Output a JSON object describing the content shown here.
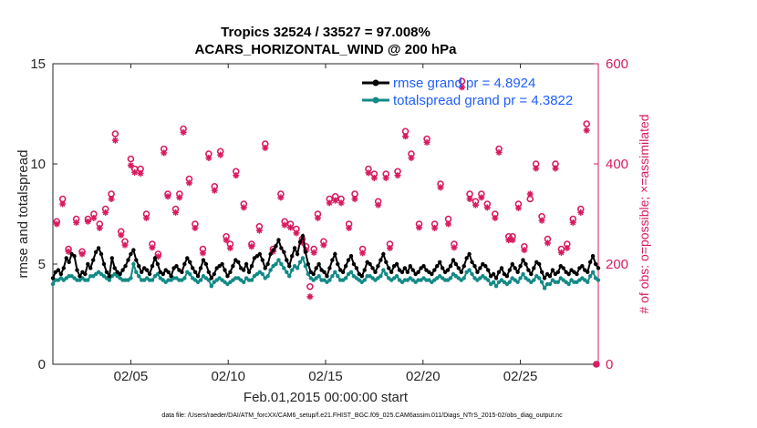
{
  "chart_data": {
    "type": "line",
    "title": [
      "Tropics 32524 / 33527 = 97.008%",
      "ACARS_HORIZONTAL_WIND @ 200 hPa"
    ],
    "xlabel": "Feb.01,2015 00:00:00 start",
    "ylabel": "rmse and totalspread",
    "y2label": "# of obs: o=possible; ×=assimilated",
    "footer": "data file: /Users/raeder/DAI/ATM_forcXX/CAM6_setup/f.e21.FHIST_BGC.f09_025.CAM6assim.011/Diags_NTrS_2015-02/obs_diag_output.nc",
    "xlim": [
      1,
      29
    ],
    "ylim": [
      0,
      15
    ],
    "y2lim": [
      0,
      600
    ],
    "x_ticks": [
      5,
      10,
      15,
      20,
      25
    ],
    "x_tick_labels": [
      "02/05",
      "02/10",
      "02/15",
      "02/20",
      "02/25"
    ],
    "y_ticks": [
      0,
      5,
      10,
      15
    ],
    "y_tick_labels": [
      "0",
      "5",
      "10",
      "15"
    ],
    "y2_ticks": [
      0,
      200,
      400,
      600
    ],
    "y2_tick_labels": [
      "0",
      "200",
      "400",
      "600"
    ],
    "series": [
      {
        "name": "rmse grand pr = 4.8924",
        "color": "#000000",
        "axis": "left",
        "values": [
          4.3,
          4.6,
          4.7,
          4.5,
          4.8,
          5.3,
          5.1,
          5.5,
          5.4,
          4.7,
          4.4,
          4.6,
          4.5,
          5.0,
          4.8,
          5.2,
          5.6,
          5.8,
          5.5,
          5.0,
          4.6,
          4.4,
          5.3,
          4.8,
          4.6,
          4.5,
          4.7,
          4.9,
          5.2,
          5.5,
          5.7,
          5.2,
          4.9,
          4.6,
          4.8,
          4.7,
          4.5,
          4.9,
          5.3,
          5.0,
          4.6,
          4.5,
          4.7,
          4.6,
          4.4,
          4.8,
          4.9,
          4.7,
          4.6,
          5.0,
          5.3,
          5.1,
          4.8,
          4.6,
          4.4,
          4.8,
          5.2,
          5.0,
          4.6,
          4.3,
          4.5,
          4.8,
          4.9,
          5.0,
          4.7,
          4.4,
          4.6,
          4.9,
          5.2,
          5.1,
          4.8,
          4.7,
          5.0,
          4.6,
          4.9,
          5.3,
          5.4,
          5.5,
          5.2,
          4.8,
          5.0,
          5.5,
          5.7,
          5.9,
          6.2,
          5.8,
          5.6,
          5.2,
          4.9,
          5.4,
          5.8,
          5.5,
          6.1,
          6.4,
          5.6,
          5.0,
          4.6,
          4.5,
          4.8,
          5.0,
          4.7,
          4.6,
          4.4,
          4.8,
          5.2,
          5.5,
          5.0,
          4.7,
          4.6,
          4.9,
          5.2,
          5.4,
          5.0,
          4.8,
          4.5,
          4.4,
          4.7,
          5.1,
          5.0,
          4.8,
          4.6,
          4.9,
          5.2,
          5.5,
          5.1,
          4.8,
          4.6,
          4.9,
          5.0,
          4.7,
          4.6,
          4.8,
          4.6,
          4.9,
          4.7,
          4.5,
          4.6,
          4.8,
          4.9,
          4.7,
          4.6,
          4.5,
          4.7,
          4.9,
          5.1,
          4.8,
          4.6,
          4.7,
          4.9,
          5.2,
          5.0,
          4.8,
          4.6,
          4.9,
          5.3,
          5.5,
          5.1,
          4.9,
          4.6,
          4.8,
          5.0,
          4.9,
          4.7,
          4.4,
          4.5,
          4.3,
          4.6,
          4.8,
          4.5,
          4.4,
          4.7,
          5.0,
          4.8,
          4.6,
          4.9,
          5.2,
          5.0,
          4.7,
          4.5,
          4.8,
          5.1,
          5.0,
          4.6,
          4.3,
          4.5,
          4.4,
          4.7,
          4.5,
          4.6,
          4.9,
          4.8,
          4.6,
          4.5,
          4.7,
          4.6,
          4.5,
          4.8,
          4.9,
          4.7,
          4.6,
          5.1,
          5.4,
          5.0,
          4.8
        ]
      },
      {
        "name": "totalspread grand pr = 4.3822",
        "color": "#138a86",
        "axis": "left",
        "values": [
          4.0,
          4.2,
          4.2,
          4.3,
          4.2,
          4.3,
          4.4,
          4.4,
          4.3,
          4.2,
          4.2,
          4.3,
          4.2,
          4.2,
          4.4,
          4.4,
          4.5,
          4.6,
          4.5,
          4.4,
          4.3,
          4.2,
          4.4,
          4.5,
          4.4,
          4.3,
          4.2,
          4.2,
          4.2,
          4.3,
          5.0,
          4.6,
          4.4,
          4.2,
          4.2,
          4.3,
          4.2,
          4.2,
          4.4,
          4.5,
          4.3,
          4.2,
          4.1,
          4.2,
          4.2,
          4.3,
          4.3,
          4.2,
          4.2,
          4.3,
          4.6,
          4.5,
          4.3,
          4.2,
          4.1,
          4.2,
          4.4,
          4.3,
          4.2,
          3.9,
          4.1,
          4.2,
          4.3,
          4.2,
          4.1,
          4.0,
          4.1,
          4.2,
          4.3,
          4.3,
          4.2,
          4.1,
          4.3,
          4.2,
          4.2,
          4.4,
          4.5,
          4.6,
          4.5,
          4.3,
          4.4,
          4.7,
          4.9,
          5.0,
          5.2,
          5.0,
          4.8,
          4.6,
          4.4,
          4.7,
          4.9,
          4.8,
          5.1,
          5.3,
          4.9,
          4.5,
          4.3,
          4.2,
          4.3,
          4.4,
          4.2,
          4.2,
          4.1,
          4.2,
          4.4,
          4.6,
          4.4,
          4.2,
          4.2,
          4.3,
          4.5,
          4.6,
          4.4,
          4.3,
          4.2,
          4.1,
          4.2,
          4.4,
          4.4,
          4.3,
          4.2,
          4.3,
          4.4,
          4.7,
          4.5,
          4.3,
          4.2,
          4.3,
          4.4,
          4.2,
          4.1,
          4.2,
          4.2,
          4.3,
          4.2,
          4.1,
          4.2,
          4.2,
          4.3,
          4.2,
          4.2,
          4.1,
          4.2,
          4.3,
          4.4,
          4.3,
          4.2,
          4.2,
          4.3,
          4.5,
          4.4,
          4.3,
          4.2,
          4.3,
          4.6,
          4.7,
          4.5,
          4.3,
          4.2,
          4.3,
          4.4,
          4.3,
          4.2,
          4.0,
          4.1,
          3.9,
          4.1,
          4.2,
          4.1,
          4.0,
          4.1,
          4.3,
          4.2,
          4.1,
          4.3,
          4.5,
          4.3,
          4.2,
          4.1,
          4.2,
          4.4,
          4.3,
          4.1,
          3.8,
          4.0,
          4.0,
          4.2,
          4.1,
          4.1,
          4.3,
          4.2,
          4.1,
          4.0,
          4.2,
          4.1,
          4.1,
          4.2,
          4.3,
          4.2,
          4.1,
          4.4,
          4.6,
          4.3,
          4.2
        ]
      }
    ],
    "obs": {
      "color": "#d81b60",
      "axis": "right",
      "points": [
        [
          1.2,
          285,
          280
        ],
        [
          1.5,
          330,
          320
        ],
        [
          1.8,
          230,
          225
        ],
        [
          2.2,
          290,
          283
        ],
        [
          2.5,
          225,
          220
        ],
        [
          2.8,
          290,
          285
        ],
        [
          3.1,
          300,
          292
        ],
        [
          3.4,
          280,
          272
        ],
        [
          3.7,
          310,
          303
        ],
        [
          4.0,
          340,
          330
        ],
        [
          4.2,
          460,
          447
        ],
        [
          4.5,
          265,
          258
        ],
        [
          4.7,
          245,
          238
        ],
        [
          5.0,
          410,
          397
        ],
        [
          5.2,
          390,
          383
        ],
        [
          5.5,
          390,
          381
        ],
        [
          5.8,
          300,
          292
        ],
        [
          6.1,
          240,
          233
        ],
        [
          6.4,
          220,
          215
        ],
        [
          6.7,
          430,
          422
        ],
        [
          6.9,
          340,
          335
        ],
        [
          7.3,
          310,
          303
        ],
        [
          7.5,
          340,
          333
        ],
        [
          7.7,
          470,
          463
        ],
        [
          8.0,
          370,
          362
        ],
        [
          8.3,
          280,
          272
        ],
        [
          8.7,
          230,
          222
        ],
        [
          9.0,
          420,
          412
        ],
        [
          9.3,
          355,
          347
        ],
        [
          9.6,
          425,
          418
        ],
        [
          9.9,
          255,
          248
        ],
        [
          10.1,
          240,
          232
        ],
        [
          10.4,
          385,
          377
        ],
        [
          10.8,
          320,
          313
        ],
        [
          11.2,
          240,
          235
        ],
        [
          11.6,
          275,
          267
        ],
        [
          11.9,
          440,
          432
        ],
        [
          12.3,
          230,
          225
        ],
        [
          12.7,
          340,
          333
        ],
        [
          12.9,
          285,
          278
        ],
        [
          13.2,
          280,
          273
        ],
        [
          13.5,
          270,
          262
        ],
        [
          13.8,
          250,
          243
        ],
        [
          14.0,
          235,
          228
        ],
        [
          14.2,
          155,
          135
        ],
        [
          14.4,
          230,
          223
        ],
        [
          14.6,
          300,
          292
        ],
        [
          14.9,
          245,
          238
        ],
        [
          15.2,
          330,
          322
        ],
        [
          15.5,
          335,
          327
        ],
        [
          15.8,
          330,
          322
        ],
        [
          16.2,
          280,
          272
        ],
        [
          16.5,
          340,
          330
        ],
        [
          16.9,
          230,
          222
        ],
        [
          17.2,
          390,
          382
        ],
        [
          17.5,
          380,
          372
        ],
        [
          17.7,
          325,
          318
        ],
        [
          18.1,
          380,
          372
        ],
        [
          18.3,
          240,
          232
        ],
        [
          18.7,
          385,
          377
        ],
        [
          19.1,
          465,
          455
        ],
        [
          19.4,
          420,
          412
        ],
        [
          19.8,
          280,
          273
        ],
        [
          20.2,
          450,
          443
        ],
        [
          20.6,
          280,
          272
        ],
        [
          20.9,
          360,
          353
        ],
        [
          21.3,
          290,
          280
        ],
        [
          21.6,
          240,
          233
        ],
        [
          22.0,
          565,
          553
        ],
        [
          22.4,
          340,
          330
        ],
        [
          22.7,
          325,
          318
        ],
        [
          23.0,
          340,
          333
        ],
        [
          23.3,
          320,
          313
        ],
        [
          23.7,
          300,
          292
        ],
        [
          23.9,
          430,
          423
        ],
        [
          24.4,
          255,
          248
        ],
        [
          24.6,
          255,
          248
        ],
        [
          24.9,
          320,
          312
        ],
        [
          25.2,
          235,
          228
        ],
        [
          25.5,
          330,
          340
        ],
        [
          25.8,
          400,
          391
        ],
        [
          26.1,
          295,
          287
        ],
        [
          26.4,
          250,
          242
        ],
        [
          26.8,
          400,
          391
        ],
        [
          27.1,
          230,
          223
        ],
        [
          27.4,
          240,
          232
        ],
        [
          27.7,
          290,
          283
        ],
        [
          28.1,
          310,
          303
        ],
        [
          28.4,
          480,
          467
        ],
        [
          28.9,
          0,
          0
        ]
      ]
    }
  }
}
